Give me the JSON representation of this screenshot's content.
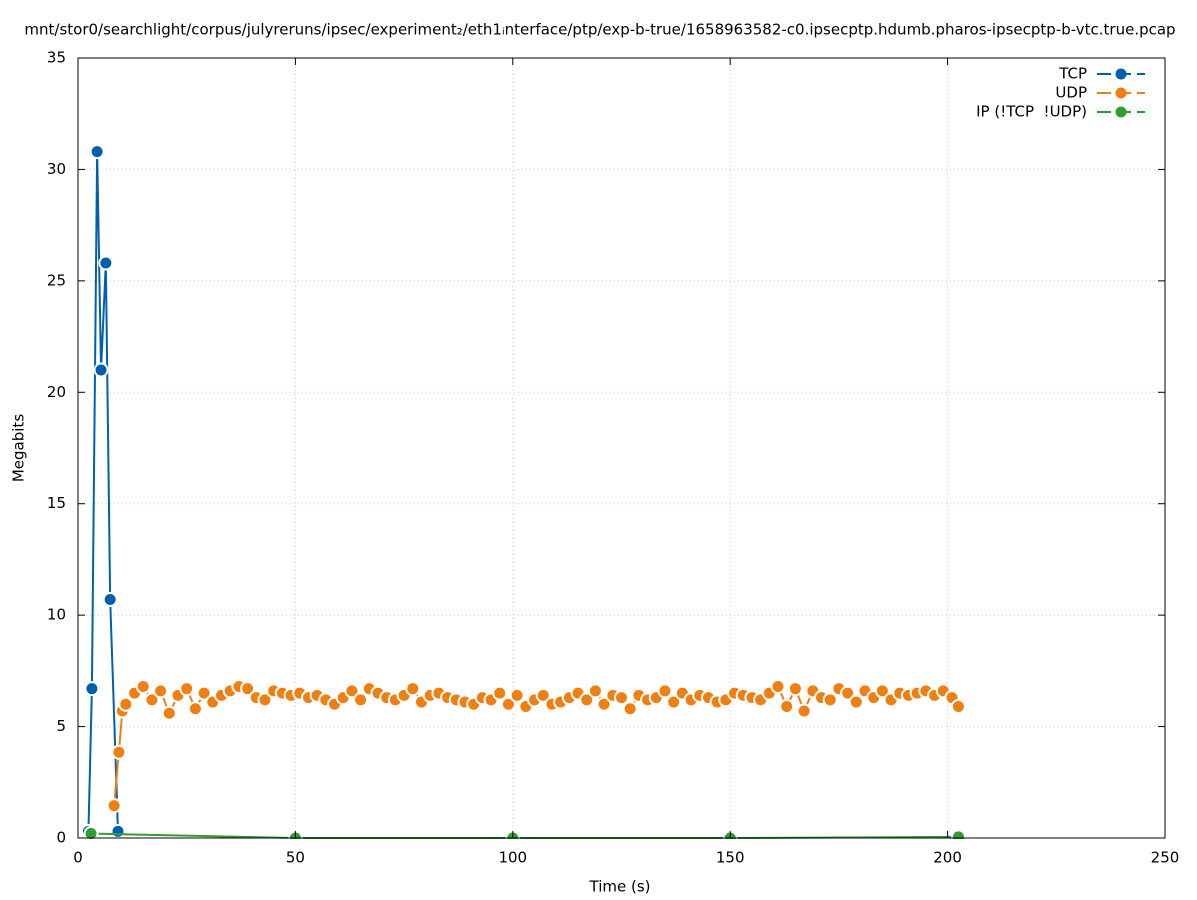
{
  "chart_data": {
    "type": "line",
    "title": "mnt/stor0/searchlight/corpus/julyreruns/ipsec/experiment₂/eth1ᵢnterface/ptp/exp-b-true/1658963582-c0.ipsecptp.hdumb.pharos-ipsecptp-b-vtc.true.pcap",
    "x_label": "Time (s)",
    "y_label": "Megabits",
    "xlim": [
      0,
      250
    ],
    "xticks": [
      0,
      50,
      100,
      150,
      200,
      250
    ],
    "ylim": [
      0,
      35
    ],
    "yticks": [
      0,
      5,
      10,
      15,
      20,
      25,
      30,
      35
    ],
    "grid": true,
    "legend": "top-right",
    "series": [
      {
        "name": "TCP",
        "color": "#0060ad",
        "x": [
          2.4,
          3.2,
          4.4,
          5.3,
          6.4,
          7.4,
          9.2
        ],
        "values": [
          0.3,
          6.7,
          30.8,
          21.0,
          25.8,
          10.7,
          0.3
        ]
      },
      {
        "name": "UDP",
        "color": "#f07f12",
        "x": [
          8.3,
          9.4,
          10.2,
          11,
          13,
          15,
          17,
          19,
          21,
          23,
          25,
          27,
          29,
          31,
          33,
          35,
          37,
          39,
          41,
          43,
          45,
          47,
          49,
          51,
          53,
          55,
          57,
          59,
          61,
          63,
          65,
          67,
          69,
          71,
          73,
          75,
          77,
          79,
          81,
          83,
          85,
          87,
          89,
          91,
          93,
          95,
          97,
          99,
          101,
          103,
          105,
          107,
          109,
          111,
          113,
          115,
          117,
          119,
          121,
          123,
          125,
          127,
          129,
          131,
          133,
          135,
          137,
          139,
          141,
          143,
          145,
          147,
          149,
          151,
          153,
          155,
          157,
          159,
          161,
          163,
          165,
          167,
          169,
          171,
          173,
          175,
          177,
          179,
          181,
          183,
          185,
          187,
          189,
          191,
          193,
          195,
          197,
          199,
          201,
          202.5
        ],
        "values": [
          1.45,
          3.85,
          5.7,
          6.0,
          6.5,
          6.8,
          6.2,
          6.6,
          5.6,
          6.4,
          6.7,
          5.8,
          6.5,
          6.1,
          6.4,
          6.6,
          6.8,
          6.7,
          6.3,
          6.2,
          6.6,
          6.5,
          6.4,
          6.5,
          6.3,
          6.4,
          6.2,
          6.0,
          6.3,
          6.6,
          6.2,
          6.7,
          6.5,
          6.3,
          6.2,
          6.4,
          6.7,
          6.1,
          6.4,
          6.5,
          6.3,
          6.2,
          6.1,
          6.0,
          6.3,
          6.2,
          6.5,
          6.0,
          6.4,
          5.9,
          6.2,
          6.4,
          6.0,
          6.1,
          6.3,
          6.5,
          6.2,
          6.6,
          6.0,
          6.4,
          6.3,
          5.8,
          6.4,
          6.2,
          6.3,
          6.6,
          6.1,
          6.5,
          6.2,
          6.4,
          6.3,
          6.1,
          6.2,
          6.5,
          6.4,
          6.3,
          6.2,
          6.5,
          6.8,
          5.9,
          6.7,
          5.7,
          6.6,
          6.3,
          6.2,
          6.7,
          6.5,
          6.1,
          6.6,
          6.3,
          6.6,
          6.2,
          6.5,
          6.4,
          6.5,
          6.6,
          6.4,
          6.6,
          6.3,
          5.9
        ]
      },
      {
        "name": "IP (!TCP  !UDP)",
        "color": "#2e9e32",
        "x": [
          3,
          50,
          100,
          150,
          202.5
        ],
        "values": [
          0.2,
          0,
          0,
          0,
          0.05
        ]
      }
    ]
  }
}
